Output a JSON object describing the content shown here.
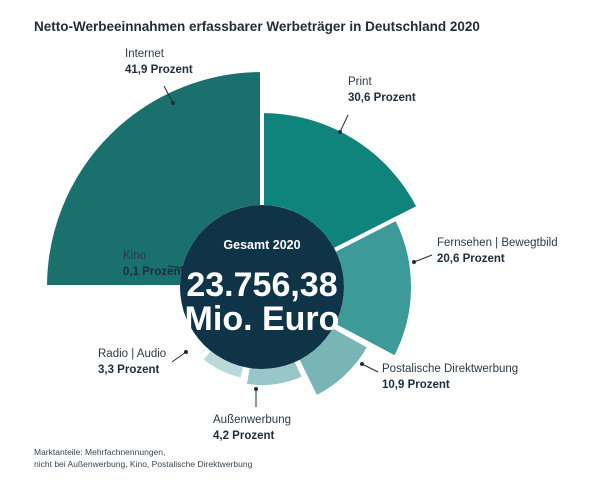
{
  "header": {
    "title": "Netto-Werbeeinnahmen erfassbarer Werbeträger in Deutschland 2020"
  },
  "center": {
    "subtitle": "Gesamt 2020",
    "total_line1": "23.756,38",
    "total_line2": "Mio. Euro",
    "fill_color": "#0f3347"
  },
  "chart_data": {
    "type": "pie",
    "total": 23756.38,
    "categories": [
      "Internet",
      "Print",
      "Fernsehen | Bewegtbild",
      "Postalische Direktwerbung",
      "Außenwerbung",
      "Radio | Audio",
      "Kino"
    ],
    "values": [
      41.9,
      30.6,
      20.6,
      10.9,
      4.2,
      3.3,
      0.1
    ],
    "value_labels": [
      "41,9 Prozent",
      "30,6 Prozent",
      "20,6 Prozent",
      "10,9 Prozent",
      "4,2 Prozent",
      "3,3 Prozent",
      "0,1 Prozent"
    ],
    "colors": [
      "#19706c",
      "#0f847c",
      "#3c9a98",
      "#7ab5b5",
      "#99c6c8",
      "#b9d9db",
      "#b9d9db"
    ]
  },
  "footnote": {
    "line1": "Marktanteile: Mehrfachnennungen,",
    "line2": "nicht bei Außenwerbung, Kino, Postalische Direktwerbung"
  }
}
